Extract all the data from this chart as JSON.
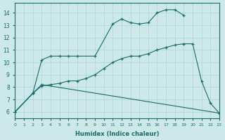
{
  "xlabel": "Humidex (Indice chaleur)",
  "bg_color": "#cce8e8",
  "line_color": "#1a6b6b",
  "grid_color": "#aad4d4",
  "xlim": [
    0,
    23
  ],
  "ylim": [
    5.5,
    14.8
  ],
  "xticks": [
    0,
    1,
    2,
    3,
    4,
    5,
    6,
    7,
    8,
    9,
    10,
    11,
    12,
    13,
    14,
    15,
    16,
    17,
    18,
    19,
    20,
    21,
    22,
    23
  ],
  "yticks": [
    6,
    7,
    8,
    9,
    10,
    11,
    12,
    13,
    14
  ],
  "line1_x": [
    0,
    2,
    3,
    4,
    5,
    6,
    7,
    9,
    11,
    12,
    13,
    14,
    15,
    16,
    17,
    18,
    19
  ],
  "line1_y": [
    6.0,
    7.5,
    10.2,
    10.5,
    10.5,
    10.5,
    10.5,
    10.5,
    13.1,
    13.5,
    13.2,
    13.1,
    13.2,
    14.0,
    14.25,
    14.25,
    13.8
  ],
  "line2_x": [
    0,
    2,
    3,
    4,
    5,
    6,
    7,
    8,
    9,
    10,
    11,
    12,
    13,
    14,
    15,
    16,
    17,
    18,
    19,
    20,
    21,
    22,
    23
  ],
  "line2_y": [
    6.0,
    7.5,
    8.1,
    8.2,
    8.3,
    8.5,
    8.5,
    8.7,
    9.0,
    9.5,
    10.0,
    10.3,
    10.5,
    10.5,
    10.7,
    11.0,
    11.2,
    11.4,
    11.5,
    11.5,
    8.5,
    6.7,
    5.9
  ],
  "line3_x": [
    0,
    2,
    3,
    23
  ],
  "line3_y": [
    6.0,
    7.5,
    8.2,
    5.9
  ]
}
